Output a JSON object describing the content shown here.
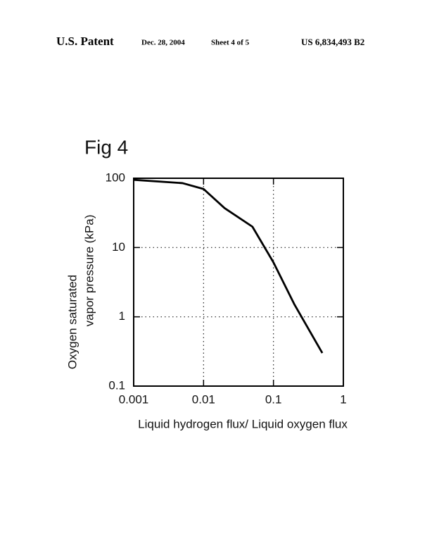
{
  "header": {
    "left": "U.S. Patent",
    "date": "Dec. 28, 2004",
    "sheet": "Sheet 4 of 5",
    "number": "US 6,834,493 B2"
  },
  "chart_data": {
    "type": "line",
    "title": "Fig 4",
    "xlabel": "Liquid hydrogen flux/ Liquid oxygen flux",
    "ylabel": [
      "Oxygen saturated",
      "vapor pressure (kPa)"
    ],
    "x": [
      0.001,
      0.005,
      0.01,
      0.02,
      0.05,
      0.1,
      0.2,
      0.5
    ],
    "values": [
      95,
      85,
      70,
      37,
      20,
      6.1,
      1.5,
      0.3
    ],
    "color": "#000000",
    "xscale": "log",
    "yscale": "log",
    "xlim": [
      0.001,
      1
    ],
    "ylim": [
      0.1,
      100
    ],
    "xticks": [
      0.001,
      0.01,
      0.1,
      1
    ],
    "yticks": [
      0.1,
      1,
      10,
      100
    ],
    "grid": true
  }
}
